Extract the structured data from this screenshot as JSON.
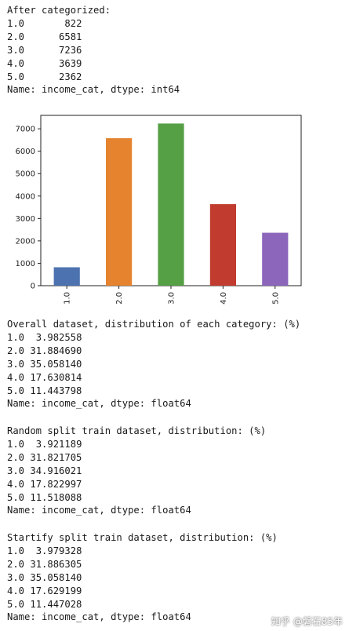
{
  "block1": {
    "header": "After categorized:",
    "rows": [
      {
        "cat": "1.0",
        "val": "822"
      },
      {
        "cat": "2.0",
        "val": "6581"
      },
      {
        "cat": "3.0",
        "val": "7236"
      },
      {
        "cat": "4.0",
        "val": "3639"
      },
      {
        "cat": "5.0",
        "val": "2362"
      }
    ],
    "footer": "Name: income_cat, dtype: int64"
  },
  "block2": {
    "header": "Overall dataset, distribution of each category: (%)",
    "rows": [
      {
        "cat": "1.0",
        "val": "3.982558"
      },
      {
        "cat": "2.0",
        "val": "31.884690"
      },
      {
        "cat": "3.0",
        "val": "35.058140"
      },
      {
        "cat": "4.0",
        "val": "17.630814"
      },
      {
        "cat": "5.0",
        "val": "11.443798"
      }
    ],
    "footer": "Name: income_cat, dtype: float64"
  },
  "block3": {
    "header": "Random split train dataset, distribution: (%)",
    "rows": [
      {
        "cat": "1.0",
        "val": "3.921189"
      },
      {
        "cat": "2.0",
        "val": "31.821705"
      },
      {
        "cat": "3.0",
        "val": "34.916021"
      },
      {
        "cat": "4.0",
        "val": "17.822997"
      },
      {
        "cat": "5.0",
        "val": "11.518088"
      }
    ],
    "footer": "Name: income_cat, dtype: float64"
  },
  "block4": {
    "header": "Startify split train dataset, distribution: (%)",
    "rows": [
      {
        "cat": "1.0",
        "val": "3.979328"
      },
      {
        "cat": "2.0",
        "val": "31.886305"
      },
      {
        "cat": "3.0",
        "val": "35.058140"
      },
      {
        "cat": "4.0",
        "val": "17.629199"
      },
      {
        "cat": "5.0",
        "val": "11.447028"
      }
    ],
    "footer": "Name: income_cat, dtype: float64"
  },
  "chart_data": {
    "type": "bar",
    "categories": [
      "1.0",
      "2.0",
      "3.0",
      "4.0",
      "5.0"
    ],
    "values": [
      822,
      6581,
      7236,
      3639,
      2362
    ],
    "colors": [
      "#4c72b0",
      "#e5832f",
      "#55a045",
      "#c13b2f",
      "#8c66bb"
    ],
    "yticks": [
      0,
      1000,
      2000,
      3000,
      4000,
      5000,
      6000,
      7000
    ],
    "ylim": [
      0,
      7600
    ],
    "title": "",
    "xlabel": "",
    "ylabel": "",
    "grid": false,
    "legend": false
  },
  "watermark": "知乎 @磐石85年"
}
